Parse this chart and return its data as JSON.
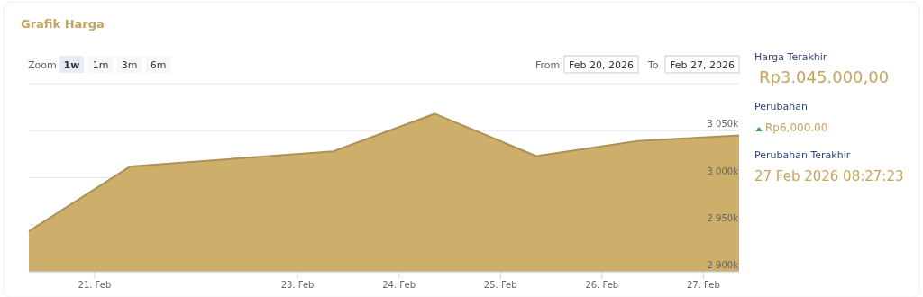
{
  "chart_data": {
    "type": "area",
    "title": "Grafik Harga",
    "x": [
      "2026-02-20T08:27",
      "2026-02-21T08:27",
      "2026-02-23T08:27",
      "2026-02-24T08:27",
      "2026-02-25T08:27",
      "2026-02-26T08:27",
      "2026-02-27T08:27"
    ],
    "series": [
      {
        "color": "#cdae6a",
        "values": [
          2943000,
          3012000,
          3028000,
          3068000,
          3023000,
          3039000,
          3045000
        ]
      }
    ],
    "xlim": [
      "2026-02-20T08:27",
      "2026-02-27T08:27"
    ],
    "xticks": [
      {
        "value": "2026-02-21",
        "label": "21. Feb"
      },
      {
        "value": "2026-02-23",
        "label": "23. Feb"
      },
      {
        "value": "2026-02-24",
        "label": "24. Feb"
      },
      {
        "value": "2026-02-25",
        "label": "25. Feb"
      },
      {
        "value": "2026-02-26",
        "label": "26. Feb"
      },
      {
        "value": "2026-02-27",
        "label": "27. Feb"
      }
    ],
    "ylim": [
      2900000,
      3100000
    ],
    "yticks": [
      {
        "value": 2900000,
        "label": "2 900k"
      },
      {
        "value": 2950000,
        "label": "2 950k"
      },
      {
        "value": 3000000,
        "label": "3 000k"
      },
      {
        "value": 3050000,
        "label": "3 050k"
      },
      {
        "value": 3100000,
        "label": null
      }
    ],
    "grid": "y",
    "annotations": [
      "Zoom",
      "1w",
      "1m",
      "3m",
      "6m",
      "From",
      "Feb 20, 2026",
      "To",
      "Feb 27, 2026",
      "Harga Terakhir",
      "Rp3.045.000,00",
      "Perubahan",
      "Rp6,000.00",
      "Perubahan Terakhir",
      "27 Feb 2026 08:27:23"
    ]
  }
}
